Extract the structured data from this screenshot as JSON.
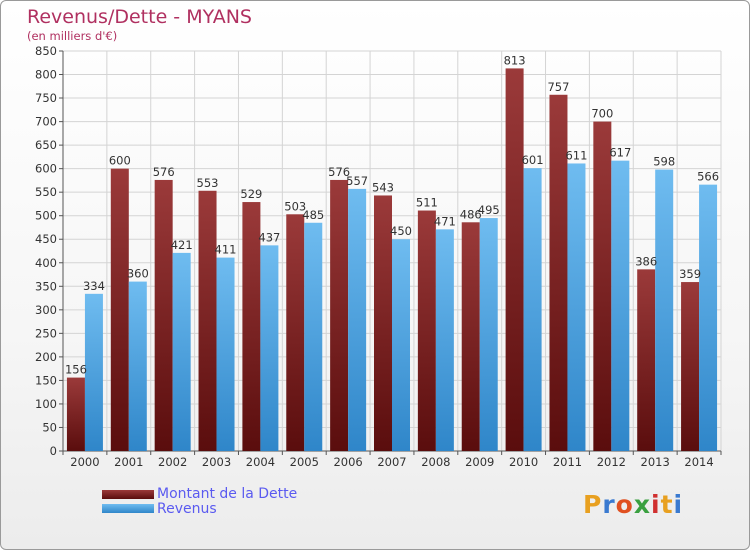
{
  "chart_data": {
    "type": "bar",
    "title": "Revenus/Dette - MYANS",
    "subtitle": "(en milliers d'€)",
    "categories": [
      "2000",
      "2001",
      "2002",
      "2003",
      "2004",
      "2005",
      "2006",
      "2007",
      "2008",
      "2009",
      "2010",
      "2011",
      "2012",
      "2013",
      "2014"
    ],
    "series": [
      {
        "name": "Montant de la Dette",
        "values": [
          156,
          600,
          576,
          553,
          529,
          503,
          576,
          543,
          511,
          486,
          813,
          757,
          700,
          386,
          359
        ]
      },
      {
        "name": "Revenus",
        "values": [
          334,
          360,
          421,
          411,
          437,
          485,
          557,
          450,
          471,
          495,
          601,
          611,
          617,
          598,
          566
        ]
      }
    ],
    "ylim": [
      0,
      850
    ],
    "yticks": [
      0,
      50,
      100,
      150,
      200,
      250,
      300,
      350,
      400,
      450,
      500,
      550,
      600,
      650,
      700,
      750,
      800,
      850
    ],
    "grid": true,
    "legend_position": "bottom-left"
  },
  "legend": {
    "debt_label": "Montant de la Dette",
    "revenue_label": "Revenus"
  },
  "logo": {
    "letters": [
      "P",
      "r",
      "o",
      "x",
      "i",
      "t",
      "i"
    ],
    "colors": [
      "#e8a020",
      "#3a7ad0",
      "#e05020",
      "#3aa040",
      "#d03030",
      "#e8a020",
      "#3a7ad0"
    ]
  },
  "colors": {
    "debt_top": "#9b3a3a",
    "debt_bottom": "#5a0d0d",
    "revenue_top": "#6fbcf0",
    "revenue_bottom": "#2f86c9"
  }
}
